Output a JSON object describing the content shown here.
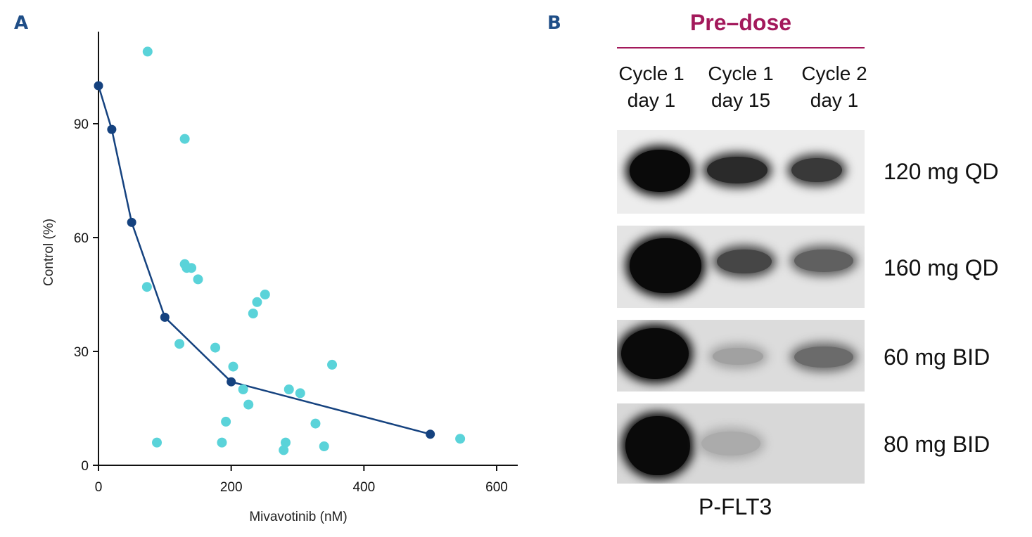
{
  "panel_a": {
    "letter": "A",
    "chart_data": {
      "type": "scatter",
      "xlabel": "Mivavotinib (nM)",
      "ylabel": "Control (%)",
      "xlim": [
        0,
        630
      ],
      "ylim": [
        0,
        114
      ],
      "xticks": [
        0,
        200,
        400,
        600
      ],
      "yticks": [
        0,
        30,
        60,
        90
      ],
      "grid": false,
      "series": [
        {
          "kind": "scatter",
          "color": "#5ad3d9",
          "points": [
            [
              74,
              109
            ],
            [
              130,
              86
            ],
            [
              130,
              53
            ],
            [
              133,
              52
            ],
            [
              140,
              52
            ],
            [
              150,
              49
            ],
            [
              73,
              47
            ],
            [
              122,
              32
            ],
            [
              176,
              31
            ],
            [
              203,
              26
            ],
            [
              218,
              20
            ],
            [
              226,
              16
            ],
            [
              233,
              40
            ],
            [
              239,
              43
            ],
            [
              251,
              45
            ],
            [
              287,
              20
            ],
            [
              304,
              19
            ],
            [
              352,
              26.5
            ],
            [
              192,
              11.5
            ],
            [
              186,
              6
            ],
            [
              88,
              6
            ],
            [
              279,
              4
            ],
            [
              282,
              6
            ],
            [
              327,
              11
            ],
            [
              340,
              5
            ],
            [
              545,
              7
            ]
          ]
        },
        {
          "kind": "line",
          "color": "#15427f",
          "points": [
            [
              0,
              100
            ],
            [
              20,
              88.5
            ],
            [
              50,
              64
            ],
            [
              100,
              39
            ],
            [
              200,
              22
            ],
            [
              500,
              8.2
            ]
          ]
        }
      ]
    }
  },
  "panel_b": {
    "letter": "B",
    "header": "Pre–dose",
    "columns": [
      {
        "line1": "Cycle 1",
        "line2": "day 1"
      },
      {
        "line1": "Cycle 1",
        "line2": "day 15"
      },
      {
        "line1": "Cycle 2",
        "line2": "day 1"
      }
    ],
    "rows": [
      {
        "label": "120 mg QD",
        "band_intensity": [
          1.0,
          0.85,
          0.78
        ]
      },
      {
        "label": "160 mg QD",
        "band_intensity": [
          1.0,
          0.72,
          0.6
        ]
      },
      {
        "label": "60 mg BID",
        "band_intensity": [
          1.0,
          0.3,
          0.55
        ]
      },
      {
        "label": "80 mg BID",
        "band_intensity": [
          1.0,
          0.25,
          0.0
        ]
      }
    ],
    "caption": "P-FLT3"
  }
}
